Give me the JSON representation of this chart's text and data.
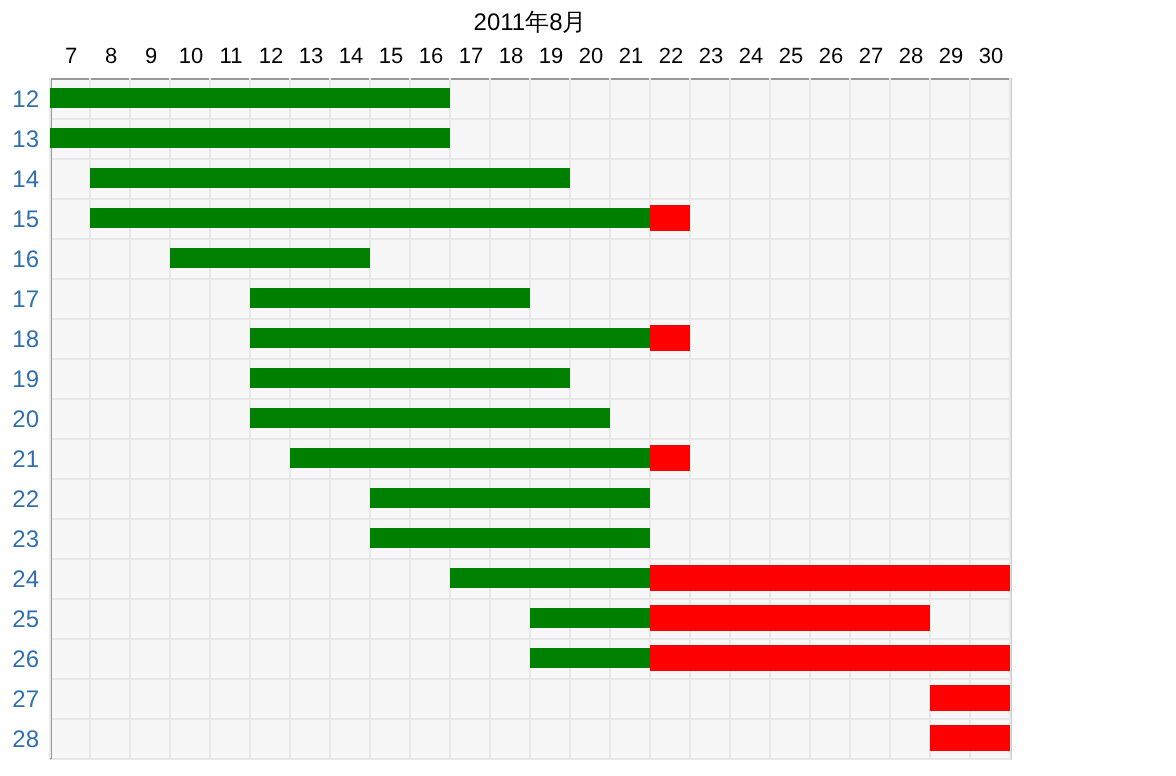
{
  "chart_data": {
    "type": "bar",
    "orientation": "horizontal",
    "title": "2011年8月",
    "categories": [
      "12",
      "13",
      "14",
      "15",
      "16",
      "17",
      "18",
      "19",
      "20",
      "21",
      "22",
      "23",
      "24",
      "25",
      "26",
      "27",
      "28"
    ],
    "series": [
      {
        "color": "#008000",
        "base": [
          7,
          7,
          8,
          8,
          10,
          12,
          12,
          12,
          12,
          13,
          15,
          15,
          17,
          19,
          19,
          null,
          null
        ],
        "values": [
          10,
          10,
          12,
          14,
          5,
          7,
          10,
          8,
          9,
          9,
          7,
          7,
          5,
          3,
          3,
          null,
          null
        ]
      },
      {
        "color": "#ff0000",
        "base": [
          null,
          null,
          null,
          22,
          null,
          null,
          22,
          null,
          null,
          22,
          null,
          null,
          22,
          22,
          22,
          29,
          29
        ],
        "values": [
          null,
          null,
          null,
          1,
          null,
          null,
          1,
          null,
          null,
          1,
          null,
          null,
          9,
          7,
          9,
          2,
          2
        ]
      }
    ],
    "xlim": [
      7,
      31
    ],
    "xticks": [
      {
        "value": 7.5,
        "label": "7"
      },
      {
        "value": 8.5,
        "label": "8"
      },
      {
        "value": 9.5,
        "label": "9"
      },
      {
        "value": 10.5,
        "label": "10"
      },
      {
        "value": 11.5,
        "label": "11"
      },
      {
        "value": 12.5,
        "label": "12"
      },
      {
        "value": 13.5,
        "label": "13"
      },
      {
        "value": 14.5,
        "label": "14"
      },
      {
        "value": 15.5,
        "label": "15"
      },
      {
        "value": 16.5,
        "label": "16"
      },
      {
        "value": 17.5,
        "label": "17"
      },
      {
        "value": 18.5,
        "label": "18"
      },
      {
        "value": 19.5,
        "label": "19"
      },
      {
        "value": 20.5,
        "label": "20"
      },
      {
        "value": 21.5,
        "label": "21"
      },
      {
        "value": 22.5,
        "label": "22"
      },
      {
        "value": 23.5,
        "label": "23"
      },
      {
        "value": 24.5,
        "label": "24"
      },
      {
        "value": 25.5,
        "label": "25"
      },
      {
        "value": 26.5,
        "label": "26"
      },
      {
        "value": 27.5,
        "label": "27"
      },
      {
        "value": 28.5,
        "label": "28"
      },
      {
        "value": 29.5,
        "label": "29"
      },
      {
        "value": 30.5,
        "label": "30"
      }
    ],
    "grid": true
  }
}
